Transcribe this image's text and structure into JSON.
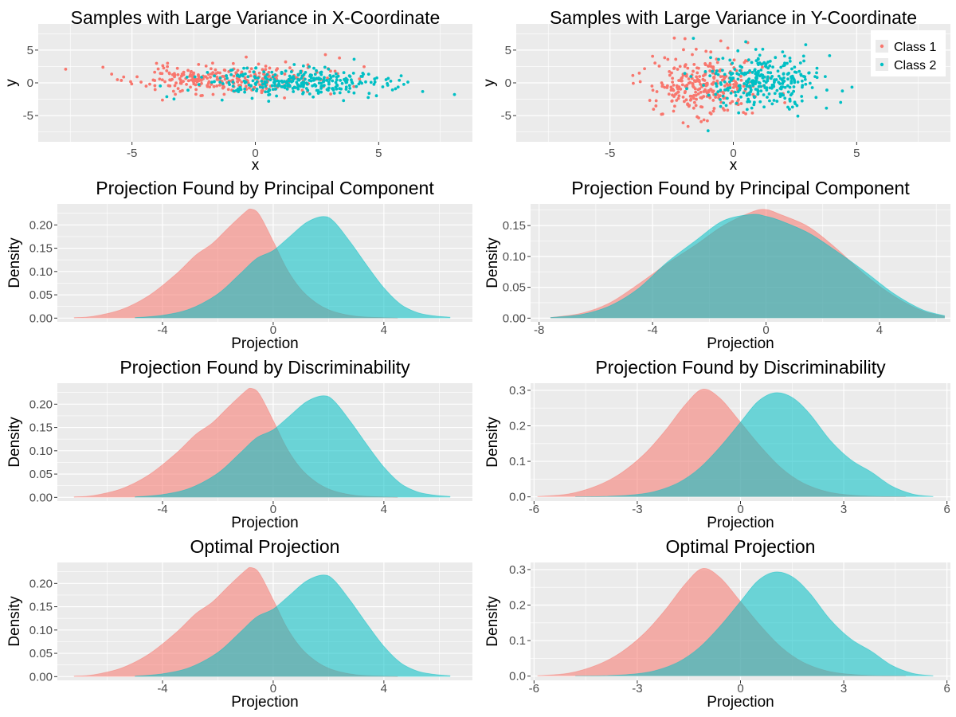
{
  "figure": {
    "colors": {
      "class1": "#F8766D",
      "class2": "#00BFC4",
      "panel_bg": "#EBEBEB",
      "grid": "#FFFFFF",
      "tick_text": "#4D4D4D"
    },
    "legend": {
      "placement": "top-right",
      "entries": [
        "Class 1",
        "Class 2"
      ]
    }
  },
  "chart_data": [
    {
      "type": "scatter",
      "title": "Samples with Large Variance in X-Coordinate",
      "xlabel": "x",
      "ylabel": "y",
      "xlim": [
        -8.8,
        8.8
      ],
      "ylim": [
        -9,
        9
      ],
      "xticks": [
        -5,
        0,
        5
      ],
      "xticklabels": [
        "-5",
        "0",
        "5"
      ],
      "yticks": [
        -5,
        0,
        5
      ],
      "yticklabels": [
        "-5",
        "0",
        "5"
      ],
      "grid": true,
      "series": [
        {
          "name": "Class 1",
          "generator": {
            "n": 300,
            "x_mean": -1.1,
            "x_sd": 1.9,
            "y_mean": 0.5,
            "y_sd": 1.1,
            "seed": 11
          }
        },
        {
          "name": "Class 2",
          "generator": {
            "n": 300,
            "x_mean": 1.6,
            "x_sd": 1.9,
            "y_mean": 0.0,
            "y_sd": 1.1,
            "seed": 23
          }
        }
      ]
    },
    {
      "type": "scatter",
      "title": "Samples with Large Variance in Y-Coordinate",
      "xlabel": "x",
      "ylabel": "y",
      "xlim": [
        -8.8,
        8.8
      ],
      "ylim": [
        -9,
        9
      ],
      "xticks": [
        -5,
        0,
        5
      ],
      "xticklabels": [
        "-5",
        "0",
        "5"
      ],
      "yticks": [
        -5,
        0,
        5
      ],
      "yticklabels": [
        "-5",
        "0",
        "5"
      ],
      "grid": true,
      "legend": [
        "Class 1",
        "Class 2"
      ],
      "series": [
        {
          "name": "Class 1",
          "generator": {
            "n": 300,
            "x_mean": -1.1,
            "x_sd": 1.1,
            "y_mean": -0.3,
            "y_sd": 2.3,
            "seed": 37
          }
        },
        {
          "name": "Class 2",
          "generator": {
            "n": 300,
            "x_mean": 1.2,
            "x_sd": 1.1,
            "y_mean": 0.4,
            "y_sd": 2.3,
            "seed": 41
          }
        }
      ]
    },
    {
      "type": "area",
      "title": "Projection Found by Principal Component",
      "xlabel": "Projection",
      "ylabel": "Density",
      "xlim": [
        -7.8,
        7.2
      ],
      "ylim": [
        -0.008,
        0.245
      ],
      "xticks": [
        -4,
        0,
        4
      ],
      "xticklabels": [
        "-4",
        "0",
        "4"
      ],
      "yticks": [
        0,
        0.05,
        0.1,
        0.15,
        0.2
      ],
      "yticklabels": [
        "0.00",
        "0.05",
        "0.10",
        "0.15",
        "0.20"
      ],
      "grid": true,
      "series": [
        {
          "name": "Class 1",
          "x": [
            -7.2,
            -6.5,
            -5.5,
            -4.5,
            -3.5,
            -2.8,
            -2.2,
            -1.6,
            -1.0,
            -0.8,
            -0.5,
            0,
            0.5,
            1.0,
            1.5,
            2.0,
            2.5,
            3.0,
            3.5,
            4.0,
            4.5
          ],
          "y": [
            0.001,
            0.004,
            0.018,
            0.048,
            0.095,
            0.135,
            0.16,
            0.195,
            0.228,
            0.234,
            0.222,
            0.165,
            0.105,
            0.062,
            0.035,
            0.018,
            0.009,
            0.004,
            0.002,
            0.001,
            0
          ]
        },
        {
          "name": "Class 2",
          "x": [
            -5.0,
            -4.0,
            -3.0,
            -2.0,
            -1.2,
            -0.6,
            0,
            0.6,
            1.2,
            1.8,
            2.2,
            2.8,
            3.4,
            4.0,
            4.6,
            5.2,
            5.8,
            6.4
          ],
          "y": [
            0.001,
            0.006,
            0.02,
            0.052,
            0.095,
            0.128,
            0.145,
            0.175,
            0.205,
            0.218,
            0.207,
            0.162,
            0.112,
            0.065,
            0.03,
            0.012,
            0.005,
            0.002
          ]
        }
      ]
    },
    {
      "type": "area",
      "title": "Projection Found by Principal Component",
      "xlabel": "Projection",
      "ylabel": "Density",
      "xlim": [
        -8.3,
        6.5
      ],
      "ylim": [
        -0.006,
        0.185
      ],
      "xticks": [
        -8,
        -4,
        0,
        4
      ],
      "xticklabels": [
        "-8",
        "-4",
        "0",
        "4"
      ],
      "yticks": [
        0,
        0.05,
        0.1,
        0.15
      ],
      "yticklabels": [
        "0.00",
        "0.05",
        "0.10",
        "0.15"
      ],
      "grid": true,
      "series": [
        {
          "name": "Class 1",
          "x": [
            -7.6,
            -6.5,
            -5.5,
            -4.5,
            -3.5,
            -2.5,
            -1.5,
            -0.5,
            0,
            0.5,
            1.5,
            2.5,
            3.5,
            4.5,
            5.5,
            6.3
          ],
          "y": [
            0.001,
            0.008,
            0.025,
            0.055,
            0.088,
            0.118,
            0.15,
            0.172,
            0.176,
            0.168,
            0.148,
            0.112,
            0.07,
            0.036,
            0.012,
            0.003
          ]
        },
        {
          "name": "Class 2",
          "x": [
            -7.6,
            -6.5,
            -5.5,
            -4.5,
            -3.5,
            -2.5,
            -1.5,
            -0.5,
            0,
            0.5,
            1.5,
            2.5,
            3.5,
            4.5,
            5.5,
            6.3
          ],
          "y": [
            0.001,
            0.006,
            0.02,
            0.048,
            0.09,
            0.125,
            0.158,
            0.168,
            0.165,
            0.158,
            0.138,
            0.108,
            0.075,
            0.04,
            0.014,
            0.004
          ]
        }
      ]
    },
    {
      "type": "area",
      "title": "Projection Found by Discriminability",
      "xlabel": "Projection",
      "ylabel": "Density",
      "xlim": [
        -7.8,
        7.2
      ],
      "ylim": [
        -0.008,
        0.245
      ],
      "xticks": [
        -4,
        0,
        4
      ],
      "xticklabels": [
        "-4",
        "0",
        "4"
      ],
      "yticks": [
        0,
        0.05,
        0.1,
        0.15,
        0.2
      ],
      "yticklabels": [
        "0.00",
        "0.05",
        "0.10",
        "0.15",
        "0.20"
      ],
      "grid": true,
      "series": [
        {
          "name": "Class 1",
          "x": [
            -7.2,
            -6.5,
            -5.5,
            -4.5,
            -3.5,
            -2.8,
            -2.2,
            -1.6,
            -1.0,
            -0.8,
            -0.5,
            0,
            0.5,
            1.0,
            1.5,
            2.0,
            2.5,
            3.0,
            3.5,
            4.0,
            4.5
          ],
          "y": [
            0.001,
            0.004,
            0.018,
            0.048,
            0.095,
            0.135,
            0.16,
            0.195,
            0.228,
            0.234,
            0.222,
            0.165,
            0.105,
            0.062,
            0.035,
            0.018,
            0.009,
            0.004,
            0.002,
            0.001,
            0
          ]
        },
        {
          "name": "Class 2",
          "x": [
            -5.0,
            -4.0,
            -3.0,
            -2.0,
            -1.2,
            -0.6,
            0,
            0.6,
            1.2,
            1.8,
            2.2,
            2.8,
            3.4,
            4.0,
            4.6,
            5.2,
            5.8,
            6.4
          ],
          "y": [
            0.001,
            0.006,
            0.02,
            0.052,
            0.095,
            0.128,
            0.145,
            0.175,
            0.205,
            0.218,
            0.207,
            0.162,
            0.112,
            0.065,
            0.03,
            0.012,
            0.005,
            0.002
          ]
        }
      ]
    },
    {
      "type": "area",
      "title": "Projection Found by Discriminability",
      "xlabel": "Projection",
      "ylabel": "Density",
      "xlim": [
        -6.1,
        6.1
      ],
      "ylim": [
        -0.012,
        0.32
      ],
      "xticks": [
        -6,
        -3,
        0,
        3,
        6
      ],
      "xticklabels": [
        "-6",
        "-3",
        "0",
        "3",
        "6"
      ],
      "yticks": [
        0,
        0.1,
        0.2,
        0.3
      ],
      "yticklabels": [
        "0.0",
        "0.1",
        "0.2",
        "0.3"
      ],
      "grid": true,
      "series": [
        {
          "name": "Class 1",
          "x": [
            -5.9,
            -5.0,
            -4.2,
            -3.5,
            -2.8,
            -2.2,
            -1.6,
            -1.1,
            -0.6,
            0,
            0.6,
            1.2,
            1.8,
            2.5,
            3.2,
            4.0,
            4.8
          ],
          "y": [
            0.001,
            0.008,
            0.03,
            0.065,
            0.12,
            0.185,
            0.26,
            0.303,
            0.278,
            0.21,
            0.14,
            0.08,
            0.04,
            0.015,
            0.005,
            0.001,
            0
          ]
        },
        {
          "name": "Class 2",
          "x": [
            -4.8,
            -4.0,
            -3.2,
            -2.5,
            -1.8,
            -1.2,
            -0.6,
            0,
            0.5,
            1.0,
            1.5,
            2.0,
            2.6,
            3.2,
            3.8,
            4.4,
            5.0,
            5.6
          ],
          "y": [
            0,
            0.001,
            0.005,
            0.015,
            0.04,
            0.08,
            0.14,
            0.21,
            0.268,
            0.293,
            0.28,
            0.235,
            0.16,
            0.105,
            0.07,
            0.03,
            0.008,
            0.001
          ]
        }
      ]
    },
    {
      "type": "area",
      "title": "Optimal Projection",
      "xlabel": "Projection",
      "ylabel": "Density",
      "xlim": [
        -7.8,
        7.2
      ],
      "ylim": [
        -0.008,
        0.245
      ],
      "xticks": [
        -4,
        0,
        4
      ],
      "xticklabels": [
        "-4",
        "0",
        "4"
      ],
      "yticks": [
        0,
        0.05,
        0.1,
        0.15,
        0.2
      ],
      "yticklabels": [
        "0.00",
        "0.05",
        "0.10",
        "0.15",
        "0.20"
      ],
      "grid": true,
      "series": [
        {
          "name": "Class 1",
          "x": [
            -7.2,
            -6.5,
            -5.5,
            -4.5,
            -3.5,
            -2.8,
            -2.2,
            -1.6,
            -1.0,
            -0.8,
            -0.5,
            0,
            0.5,
            1.0,
            1.5,
            2.0,
            2.5,
            3.0,
            3.5,
            4.0,
            4.5
          ],
          "y": [
            0.001,
            0.004,
            0.018,
            0.048,
            0.095,
            0.135,
            0.16,
            0.195,
            0.228,
            0.234,
            0.222,
            0.165,
            0.105,
            0.062,
            0.035,
            0.018,
            0.009,
            0.004,
            0.002,
            0.001,
            0
          ]
        },
        {
          "name": "Class 2",
          "x": [
            -5.0,
            -4.0,
            -3.0,
            -2.0,
            -1.2,
            -0.6,
            0,
            0.6,
            1.2,
            1.8,
            2.2,
            2.8,
            3.4,
            4.0,
            4.6,
            5.2,
            5.8,
            6.4
          ],
          "y": [
            0.001,
            0.006,
            0.02,
            0.052,
            0.095,
            0.128,
            0.145,
            0.175,
            0.205,
            0.218,
            0.207,
            0.162,
            0.112,
            0.065,
            0.03,
            0.012,
            0.005,
            0.002
          ]
        }
      ]
    },
    {
      "type": "area",
      "title": "Optimal Projection",
      "xlabel": "Projection",
      "ylabel": "Density",
      "xlim": [
        -6.1,
        6.1
      ],
      "ylim": [
        -0.012,
        0.32
      ],
      "xticks": [
        -6,
        -3,
        0,
        3,
        6
      ],
      "xticklabels": [
        "-6",
        "-3",
        "0",
        "3",
        "6"
      ],
      "yticks": [
        0,
        0.1,
        0.2,
        0.3
      ],
      "yticklabels": [
        "0.0",
        "0.1",
        "0.2",
        "0.3"
      ],
      "grid": true,
      "series": [
        {
          "name": "Class 1",
          "x": [
            -5.9,
            -5.0,
            -4.2,
            -3.5,
            -2.8,
            -2.2,
            -1.6,
            -1.1,
            -0.6,
            0,
            0.6,
            1.2,
            1.8,
            2.5,
            3.2,
            4.0,
            4.8
          ],
          "y": [
            0.001,
            0.008,
            0.03,
            0.065,
            0.12,
            0.185,
            0.26,
            0.303,
            0.278,
            0.21,
            0.14,
            0.08,
            0.04,
            0.015,
            0.005,
            0.001,
            0
          ]
        },
        {
          "name": "Class 2",
          "x": [
            -4.8,
            -4.0,
            -3.2,
            -2.5,
            -1.8,
            -1.2,
            -0.6,
            0,
            0.5,
            1.0,
            1.5,
            2.0,
            2.6,
            3.2,
            3.8,
            4.4,
            5.0,
            5.6
          ],
          "y": [
            0,
            0.001,
            0.005,
            0.015,
            0.04,
            0.08,
            0.14,
            0.21,
            0.268,
            0.293,
            0.28,
            0.235,
            0.16,
            0.105,
            0.07,
            0.03,
            0.008,
            0.001
          ]
        }
      ]
    }
  ]
}
